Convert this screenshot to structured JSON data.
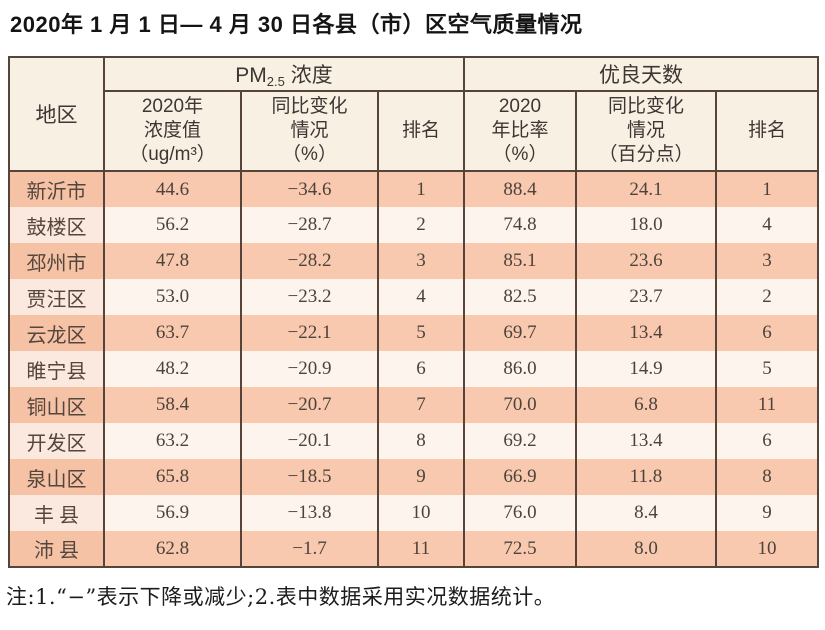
{
  "title": "2020年 1 月 1 日— 4 月 30 日各县（市）区空气质量情况",
  "table": {
    "header": {
      "region": "地区",
      "pm_group": {
        "prefix": "PM",
        "sub": "2.5",
        "suffix": " 浓度"
      },
      "good_group": "优良天数",
      "sub_headers": [
        "2020年\n浓度值\n（ug/m³）",
        "同比变化\n情况\n（%）",
        "排名",
        "2020\n年比率\n（%）",
        "同比变化\n情况\n（百分点）",
        "排名"
      ]
    },
    "row_keys": [
      "region",
      "pm_value",
      "pm_change",
      "pm_rank",
      "good_ratio",
      "good_change",
      "good_rank"
    ],
    "rows": [
      {
        "region": "新沂市",
        "pm_value": "44.6",
        "pm_change": "−34.6",
        "pm_rank": "1",
        "good_ratio": "88.4",
        "good_change": "24.1",
        "good_rank": "1"
      },
      {
        "region": "鼓楼区",
        "pm_value": "56.2",
        "pm_change": "−28.7",
        "pm_rank": "2",
        "good_ratio": "74.8",
        "good_change": "18.0",
        "good_rank": "4"
      },
      {
        "region": "邳州市",
        "pm_value": "47.8",
        "pm_change": "−28.2",
        "pm_rank": "3",
        "good_ratio": "85.1",
        "good_change": "23.6",
        "good_rank": "3"
      },
      {
        "region": "贾汪区",
        "pm_value": "53.0",
        "pm_change": "−23.2",
        "pm_rank": "4",
        "good_ratio": "82.5",
        "good_change": "23.7",
        "good_rank": "2"
      },
      {
        "region": "云龙区",
        "pm_value": "63.7",
        "pm_change": "−22.1",
        "pm_rank": "5",
        "good_ratio": "69.7",
        "good_change": "13.4",
        "good_rank": "6"
      },
      {
        "region": "睢宁县",
        "pm_value": "48.2",
        "pm_change": "−20.9",
        "pm_rank": "6",
        "good_ratio": "86.0",
        "good_change": "14.9",
        "good_rank": "5"
      },
      {
        "region": "铜山区",
        "pm_value": "58.4",
        "pm_change": "−20.7",
        "pm_rank": "7",
        "good_ratio": "70.0",
        "good_change": "6.8",
        "good_rank": "11"
      },
      {
        "region": "开发区",
        "pm_value": "63.2",
        "pm_change": "−20.1",
        "pm_rank": "8",
        "good_ratio": "69.2",
        "good_change": "13.4",
        "good_rank": "6"
      },
      {
        "region": "泉山区",
        "pm_value": "65.8",
        "pm_change": "−18.5",
        "pm_rank": "9",
        "good_ratio": "66.9",
        "good_change": "11.8",
        "good_rank": "8"
      },
      {
        "region": "丰 县",
        "pm_value": "56.9",
        "pm_change": "−13.8",
        "pm_rank": "10",
        "good_ratio": "76.0",
        "good_change": "8.4",
        "good_rank": "9"
      },
      {
        "region": "沛 县",
        "pm_value": "62.8",
        "pm_change": "−1.7",
        "pm_rank": "11",
        "good_ratio": "72.5",
        "good_change": "8.0",
        "good_rank": "10"
      }
    ]
  },
  "note": "注:1.“−”表示下降或减少;2.表中数据采用实况数据统计。",
  "colors": {
    "shade_row": "#f8c9ae",
    "light_row": "#fdf4ee",
    "header_bg": "#f9f0e4",
    "border": "#564339"
  },
  "chart_data": {
    "type": "table",
    "title": "2020年 1 月 1 日— 4 月 30 日各县（市）区空气质量情况",
    "column_groups": [
      "地区",
      "PM2.5浓度",
      "优良天数"
    ],
    "columns": [
      "地区",
      "2020年浓度值（ug/m³）",
      "同比变化情况（%）",
      "排名",
      "2020年比率（%）",
      "同比变化情况（百分点）",
      "排名"
    ],
    "rows": [
      [
        "新沂市",
        44.6,
        -34.6,
        1,
        88.4,
        24.1,
        1
      ],
      [
        "鼓楼区",
        56.2,
        -28.7,
        2,
        74.8,
        18.0,
        4
      ],
      [
        "邳州市",
        47.8,
        -28.2,
        3,
        85.1,
        23.6,
        3
      ],
      [
        "贾汪区",
        53.0,
        -23.2,
        4,
        82.5,
        23.7,
        2
      ],
      [
        "云龙区",
        63.7,
        -22.1,
        5,
        69.7,
        13.4,
        6
      ],
      [
        "睢宁县",
        48.2,
        -20.9,
        6,
        86.0,
        14.9,
        5
      ],
      [
        "铜山区",
        58.4,
        -20.7,
        7,
        70.0,
        6.8,
        11
      ],
      [
        "开发区",
        63.2,
        -20.1,
        8,
        69.2,
        13.4,
        6
      ],
      [
        "泉山区",
        65.8,
        -18.5,
        9,
        66.9,
        11.8,
        8
      ],
      [
        "丰县",
        56.9,
        -13.8,
        10,
        76.0,
        8.4,
        9
      ],
      [
        "沛县",
        62.8,
        -1.7,
        11,
        72.5,
        8.0,
        10
      ]
    ],
    "note": "注:1.“−”表示下降或减少;2.表中数据采用实况数据统计。"
  }
}
